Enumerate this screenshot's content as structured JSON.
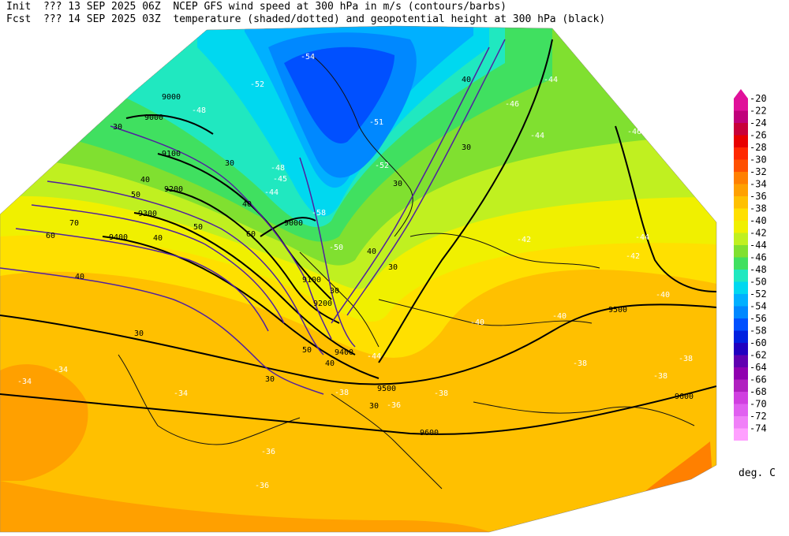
{
  "header": {
    "init_label": "Init",
    "init_value": "??? 13 SEP 2025 06Z",
    "fcst_label": "Fcst",
    "fcst_value": "??? 14 SEP 2025 03Z",
    "line1_desc": "NCEP GFS wind speed at 300 hPa in m/s (contours/barbs)",
    "line2_desc": "temperature (shaded/dotted) and geopotential height at 300 hPa (black)"
  },
  "colorbar": {
    "units": "deg. C",
    "levels": [
      {
        "label": "-20",
        "color": "#e0109a"
      },
      {
        "label": "-22",
        "color": "#c0007a"
      },
      {
        "label": "-24",
        "color": "#c8003a"
      },
      {
        "label": "-26",
        "color": "#e80000"
      },
      {
        "label": "-28",
        "color": "#ff2800"
      },
      {
        "label": "-30",
        "color": "#ff5000"
      },
      {
        "label": "-32",
        "color": "#ff8000"
      },
      {
        "label": "-34",
        "color": "#ffa000"
      },
      {
        "label": "-36",
        "color": "#ffc000"
      },
      {
        "label": "-38",
        "color": "#ffe000"
      },
      {
        "label": "-40",
        "color": "#f0f000"
      },
      {
        "label": "-42",
        "color": "#c0f020"
      },
      {
        "label": "-44",
        "color": "#80e030"
      },
      {
        "label": "-46",
        "color": "#40e060"
      },
      {
        "label": "-48",
        "color": "#20e8c0"
      },
      {
        "label": "-50",
        "color": "#00d8f0"
      },
      {
        "label": "-52",
        "color": "#00b0ff"
      },
      {
        "label": "-54",
        "color": "#0088ff"
      },
      {
        "label": "-56",
        "color": "#0050ff"
      },
      {
        "label": "-58",
        "color": "#0020e0"
      },
      {
        "label": "-60",
        "color": "#2000c0"
      },
      {
        "label": "-62",
        "color": "#6000b0"
      },
      {
        "label": "-64",
        "color": "#9000b0"
      },
      {
        "label": "-66",
        "color": "#b020c0"
      },
      {
        "label": "-68",
        "color": "#d040e0"
      },
      {
        "label": "-70",
        "color": "#e060f0"
      },
      {
        "label": "-72",
        "color": "#f080f8"
      },
      {
        "label": "-74",
        "color": "#ffa0ff"
      }
    ]
  },
  "map_labels": {
    "height": [
      "9000",
      "9000",
      "9100",
      "9200",
      "9300",
      "9400",
      "9000",
      "9100",
      "9200",
      "9400",
      "9500",
      "9500",
      "9600",
      "9600"
    ],
    "wind": [
      "30",
      "40",
      "50",
      "60",
      "70",
      "60",
      "50",
      "40",
      "40",
      "30",
      "30",
      "40",
      "50",
      "40",
      "30",
      "30",
      "30",
      "30",
      "40",
      "30",
      "30",
      "40"
    ],
    "temperature": [
      "-54",
      "-52",
      "-48",
      "-51",
      "-52",
      "-46",
      "-44",
      "-44",
      "-48",
      "-45",
      "-44",
      "-50",
      "-58",
      "-46",
      "-44",
      "-42",
      "-42",
      "-40",
      "-40",
      "-40",
      "-38",
      "-38",
      "-38",
      "-34",
      "-34",
      "-34",
      "-36",
      "-36",
      "-38",
      "-36",
      "-38",
      "-44"
    ]
  }
}
